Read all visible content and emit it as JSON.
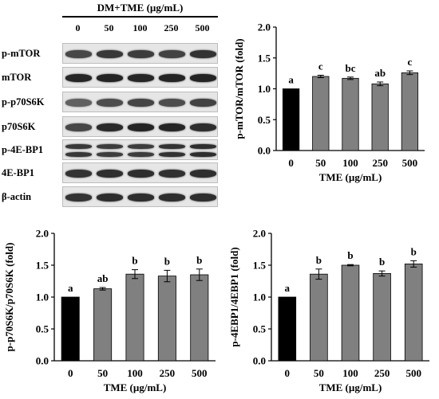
{
  "blot": {
    "header": "DM+TME (µg/mL)",
    "lanes": [
      "0",
      "50",
      "100",
      "250",
      "500"
    ],
    "rows": [
      {
        "label": "p-mTOR",
        "intensity": [
          0.72,
          0.78,
          0.76,
          0.74,
          0.8
        ],
        "double": false
      },
      {
        "label": "mTOR",
        "intensity": [
          0.85,
          0.86,
          0.85,
          0.86,
          0.86
        ],
        "double": false
      },
      {
        "label": "p-p70S6K",
        "intensity": [
          0.62,
          0.7,
          0.73,
          0.7,
          0.74
        ],
        "double": false
      },
      {
        "label": "p70S6K",
        "intensity": [
          0.72,
          0.84,
          0.86,
          0.85,
          0.82
        ],
        "double": false
      },
      {
        "label": "p-4E-BP1",
        "intensity": [
          0.78,
          0.76,
          0.76,
          0.8,
          0.82
        ],
        "double": true
      },
      {
        "label": "4E-BP1",
        "intensity": [
          0.8,
          0.82,
          0.82,
          0.81,
          0.82
        ],
        "double": false
      },
      {
        "label": "β-actin",
        "intensity": [
          0.8,
          0.82,
          0.82,
          0.82,
          0.82
        ],
        "double": false
      }
    ]
  },
  "chart_data": [
    {
      "type": "bar",
      "categories": [
        "0",
        "50",
        "100",
        "250",
        "500"
      ],
      "values": [
        1.0,
        1.2,
        1.17,
        1.08,
        1.26
      ],
      "errors": [
        0.0,
        0.02,
        0.02,
        0.03,
        0.03
      ],
      "letters": [
        "a",
        "c",
        "bc",
        "ab",
        "c"
      ],
      "bar_colors": [
        "#000000",
        "#808080",
        "#808080",
        "#808080",
        "#808080"
      ],
      "ylabel": "p-mTOR/mTOR (fold)",
      "xlabel": "TME (µg/mL)",
      "ylim": [
        0,
        2.0
      ],
      "yticks": [
        "0.0",
        "0.5",
        "1.0",
        "1.5",
        "2.0"
      ],
      "grid": false
    },
    {
      "type": "bar",
      "categories": [
        "0",
        "50",
        "100",
        "250",
        "500"
      ],
      "values": [
        1.0,
        1.13,
        1.36,
        1.33,
        1.35
      ],
      "errors": [
        0.0,
        0.02,
        0.07,
        0.09,
        0.09
      ],
      "letters": [
        "a",
        "ab",
        "b",
        "b",
        "b"
      ],
      "bar_colors": [
        "#000000",
        "#808080",
        "#808080",
        "#808080",
        "#808080"
      ],
      "ylabel": "p-p70S6K/p70S6K (fold)",
      "xlabel": "TME (µg/mL)",
      "ylim": [
        0,
        2.0
      ],
      "yticks": [
        "0.0",
        "0.5",
        "1.0",
        "1.5",
        "2.0"
      ],
      "grid": false
    },
    {
      "type": "bar",
      "categories": [
        "0",
        "50",
        "100",
        "250",
        "500"
      ],
      "values": [
        1.0,
        1.36,
        1.5,
        1.37,
        1.52
      ],
      "errors": [
        0.0,
        0.08,
        0.01,
        0.04,
        0.05
      ],
      "letters": [
        "a",
        "b",
        "b",
        "b",
        "b"
      ],
      "bar_colors": [
        "#000000",
        "#808080",
        "#808080",
        "#808080",
        "#808080"
      ],
      "ylabel": "p-4EBP1/4EBP1 (fold)",
      "xlabel": "TME (µg/mL)",
      "ylim": [
        0,
        2.0
      ],
      "yticks": [
        "0.0",
        "0.5",
        "1.0",
        "1.5",
        "2.0"
      ],
      "grid": false
    }
  ]
}
